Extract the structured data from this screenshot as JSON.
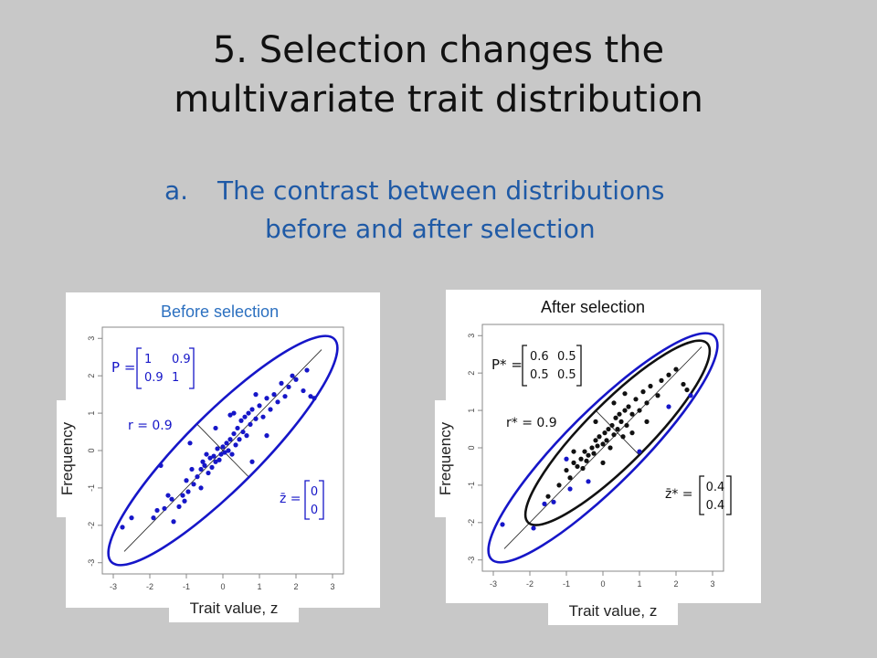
{
  "slide": {
    "title_line1": "5. Selection changes the",
    "title_line2": "multivariate trait distribution",
    "subtitle_marker": "a.",
    "subtitle_line1": "The contrast between distributions",
    "subtitle_line2": "before and after selection",
    "colors": {
      "background": "#c8c8c8",
      "subtitle": "#1f5aa6",
      "blue": "#1616c8",
      "black": "#111111"
    }
  },
  "panels": [
    {
      "title": "Before selection",
      "ylabel": "Frequency",
      "xlabel": "Trait value, z",
      "matrix_label": "P =",
      "matrix": [
        [
          "1",
          "0.9"
        ],
        [
          "0.9",
          "1"
        ]
      ],
      "r_label": "r = 0.9",
      "mean_label": "z̄ =",
      "mean_vector": [
        "0",
        "0"
      ]
    },
    {
      "title": "After selection",
      "ylabel": "Frequency",
      "xlabel": "Trait value, z",
      "matrix_label": "P* =",
      "matrix": [
        [
          "0.6",
          "0.5"
        ],
        [
          "0.5",
          "0.5"
        ]
      ],
      "r_label": "r* = 0.9",
      "mean_label": "z̄* =",
      "mean_vector": [
        "0.4",
        "0.4"
      ]
    }
  ],
  "chart_data": [
    {
      "type": "scatter",
      "title": "Before selection",
      "xlabel": "Trait value, z",
      "ylabel": "Frequency",
      "xlim": [
        -3.3,
        3.3
      ],
      "ylim": [
        -3.3,
        3.3
      ],
      "xticks": [
        "-3",
        "-2",
        "-1",
        "0",
        "1",
        "2",
        "3"
      ],
      "yticks": [
        "-3",
        "-2",
        "-1",
        "0",
        "1",
        "2",
        "3"
      ],
      "series": [
        {
          "color": "#1616c8",
          "points": [
            [
              -2.75,
              -2.05
            ],
            [
              -2.5,
              -1.8
            ],
            [
              -1.9,
              -1.8
            ],
            [
              -1.8,
              -1.6
            ],
            [
              -1.6,
              -1.55
            ],
            [
              -1.5,
              -1.2
            ],
            [
              -1.4,
              -1.3
            ],
            [
              -1.35,
              -1.9
            ],
            [
              -1.2,
              -1.5
            ],
            [
              -1.1,
              -1.2
            ],
            [
              -1.05,
              -1.35
            ],
            [
              -1.0,
              -0.8
            ],
            [
              -0.95,
              -1.1
            ],
            [
              -0.85,
              -0.5
            ],
            [
              -0.8,
              -0.9
            ],
            [
              -0.7,
              -0.7
            ],
            [
              -0.6,
              -0.5
            ],
            [
              -0.55,
              -0.3
            ],
            [
              -0.5,
              -0.4
            ],
            [
              -0.45,
              -0.1
            ],
            [
              -0.4,
              -0.6
            ],
            [
              -0.35,
              -0.2
            ],
            [
              -0.3,
              -0.45
            ],
            [
              -0.25,
              -0.15
            ],
            [
              -0.2,
              -0.3
            ],
            [
              -0.15,
              0.05
            ],
            [
              -0.1,
              -0.25
            ],
            [
              -0.05,
              -0.1
            ],
            [
              0.0,
              0.1
            ],
            [
              0.05,
              -0.05
            ],
            [
              0.1,
              0.2
            ],
            [
              0.15,
              0.0
            ],
            [
              0.2,
              0.3
            ],
            [
              0.25,
              -0.1
            ],
            [
              0.3,
              0.45
            ],
            [
              0.35,
              0.15
            ],
            [
              0.4,
              0.6
            ],
            [
              0.45,
              0.3
            ],
            [
              0.5,
              0.8
            ],
            [
              0.55,
              0.5
            ],
            [
              0.6,
              0.9
            ],
            [
              0.65,
              0.4
            ],
            [
              0.7,
              1.0
            ],
            [
              0.75,
              0.7
            ],
            [
              0.8,
              1.1
            ],
            [
              0.9,
              0.85
            ],
            [
              1.0,
              1.2
            ],
            [
              1.1,
              0.9
            ],
            [
              1.2,
              1.4
            ],
            [
              1.3,
              1.1
            ],
            [
              1.4,
              1.5
            ],
            [
              1.5,
              1.3
            ],
            [
              1.6,
              1.8
            ],
            [
              1.7,
              1.45
            ],
            [
              1.8,
              1.7
            ],
            [
              1.9,
              2.0
            ],
            [
              2.0,
              1.9
            ],
            [
              2.2,
              1.6
            ],
            [
              2.3,
              2.15
            ],
            [
              2.5,
              1.4
            ],
            [
              -1.7,
              -0.4
            ],
            [
              -0.9,
              0.2
            ],
            [
              0.8,
              -0.3
            ],
            [
              0.3,
              1.0
            ],
            [
              -0.2,
              0.6
            ],
            [
              1.2,
              0.4
            ],
            [
              2.4,
              1.45
            ],
            [
              0.2,
              0.95
            ],
            [
              -0.6,
              -1.0
            ],
            [
              0.9,
              1.5
            ]
          ]
        }
      ]
    },
    {
      "type": "scatter",
      "title": "After selection",
      "xlabel": "Trait value, z",
      "ylabel": "Frequency",
      "xlim": [
        -3.3,
        3.3
      ],
      "ylim": [
        -3.3,
        3.3
      ],
      "xticks": [
        "-3",
        "-2",
        "-1",
        "0",
        "1",
        "2",
        "3"
      ],
      "yticks": [
        "-3",
        "-2",
        "-1",
        "0",
        "1",
        "2",
        "3"
      ],
      "series": [
        {
          "color": "#1616c8",
          "points": [
            [
              -2.75,
              -2.05
            ],
            [
              -1.9,
              -2.15
            ],
            [
              -1.6,
              -1.5
            ],
            [
              -1.35,
              -1.45
            ],
            [
              -1.0,
              -0.3
            ],
            [
              -0.9,
              -1.1
            ],
            [
              -0.4,
              -0.9
            ],
            [
              1.0,
              -0.1
            ],
            [
              1.8,
              1.1
            ],
            [
              2.4,
              1.4
            ]
          ]
        },
        {
          "color": "#111111",
          "points": [
            [
              -1.5,
              -1.3
            ],
            [
              -1.2,
              -1.0
            ],
            [
              -1.0,
              -0.6
            ],
            [
              -0.9,
              -0.8
            ],
            [
              -0.8,
              -0.4
            ],
            [
              -0.7,
              -0.5
            ],
            [
              -0.6,
              -0.3
            ],
            [
              -0.55,
              -0.55
            ],
            [
              -0.5,
              -0.1
            ],
            [
              -0.45,
              -0.35
            ],
            [
              -0.4,
              -0.2
            ],
            [
              -0.3,
              0.0
            ],
            [
              -0.25,
              -0.15
            ],
            [
              -0.2,
              0.2
            ],
            [
              -0.15,
              0.05
            ],
            [
              -0.1,
              0.3
            ],
            [
              0.0,
              0.1
            ],
            [
              0.05,
              0.4
            ],
            [
              0.1,
              0.2
            ],
            [
              0.15,
              0.5
            ],
            [
              0.2,
              0.0
            ],
            [
              0.25,
              0.6
            ],
            [
              0.3,
              0.35
            ],
            [
              0.35,
              0.8
            ],
            [
              0.4,
              0.5
            ],
            [
              0.45,
              0.9
            ],
            [
              0.5,
              0.7
            ],
            [
              0.55,
              0.3
            ],
            [
              0.6,
              1.0
            ],
            [
              0.65,
              0.6
            ],
            [
              0.7,
              1.1
            ],
            [
              0.8,
              0.9
            ],
            [
              0.9,
              1.3
            ],
            [
              1.0,
              1.0
            ],
            [
              1.1,
              1.5
            ],
            [
              1.2,
              1.2
            ],
            [
              1.3,
              1.65
            ],
            [
              1.5,
              1.4
            ],
            [
              1.6,
              1.8
            ],
            [
              1.8,
              1.95
            ],
            [
              2.0,
              2.1
            ],
            [
              2.2,
              1.7
            ],
            [
              2.3,
              1.55
            ],
            [
              0.3,
              1.2
            ],
            [
              -0.2,
              0.7
            ],
            [
              0.8,
              0.4
            ],
            [
              1.2,
              0.7
            ],
            [
              -0.8,
              -0.1
            ],
            [
              0.0,
              -0.4
            ],
            [
              0.6,
              1.45
            ]
          ]
        }
      ]
    }
  ]
}
